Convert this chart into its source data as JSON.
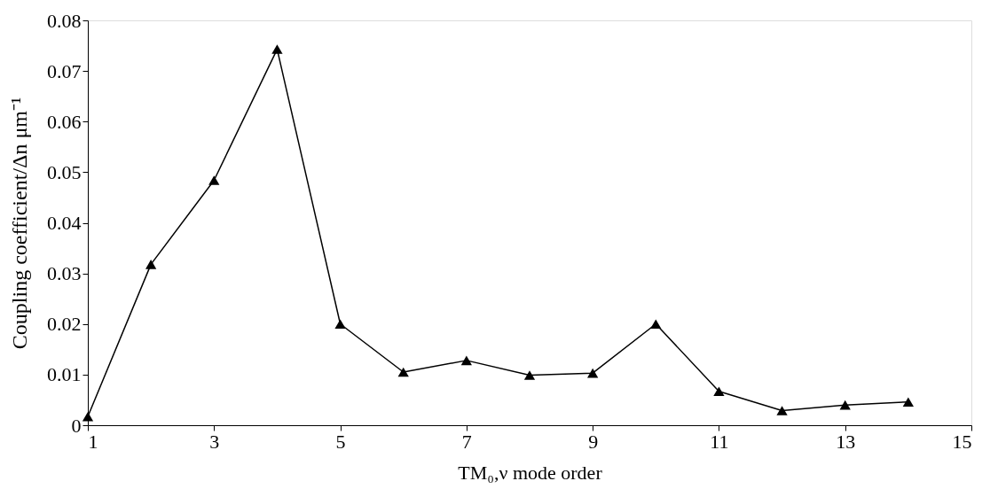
{
  "chart_data": {
    "type": "line",
    "xlabel": "TM₀,ν mode order",
    "ylabel": "Coupling coefficient/Δn μm⁻¹",
    "x": [
      1,
      2,
      3,
      4,
      5,
      6,
      7,
      8,
      9,
      10,
      11,
      12,
      13,
      14
    ],
    "series": [
      {
        "color": "#000000",
        "values": [
          0.0017,
          0.0318,
          0.0484,
          0.0743,
          0.02,
          0.0105,
          0.0128,
          0.0099,
          0.0103,
          0.02,
          0.0067,
          0.0029,
          0.004,
          0.0046
        ]
      }
    ],
    "xlim": [
      1,
      15
    ],
    "xticks": [
      1,
      3,
      5,
      7,
      9,
      11,
      13,
      15
    ],
    "ylim": [
      0,
      0.08
    ],
    "yticks": [
      0,
      0.01,
      0.02,
      0.03,
      0.04,
      0.05,
      0.06,
      0.07,
      0.08
    ],
    "grid": false,
    "marker": "triangle",
    "line_style": "solid"
  }
}
